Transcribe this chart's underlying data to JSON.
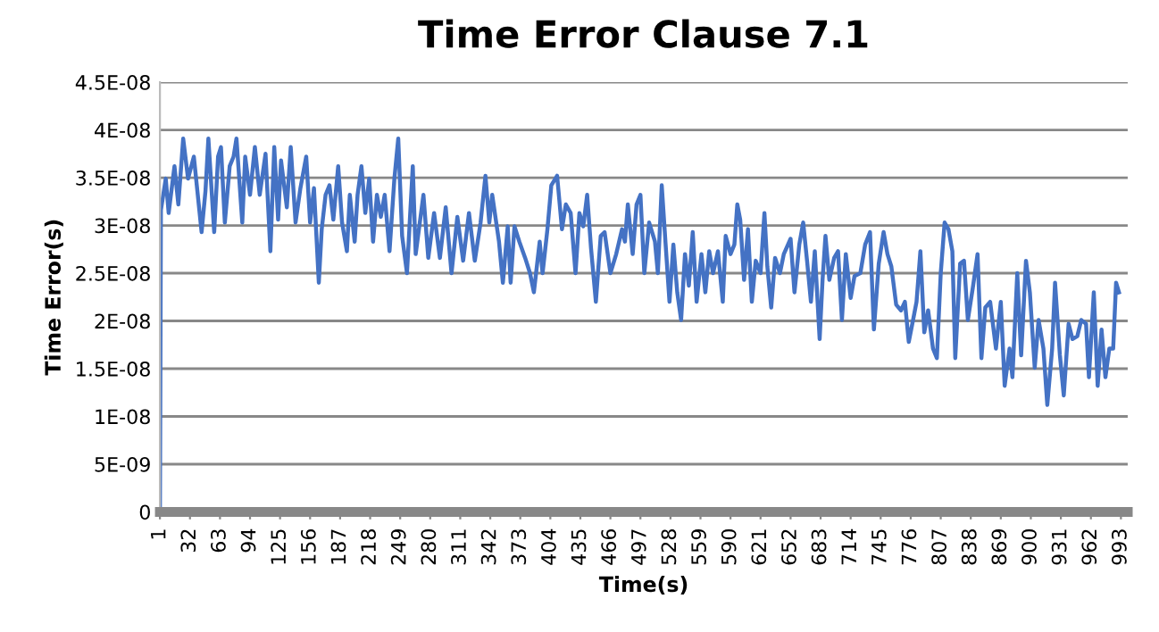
{
  "chart_data": {
    "type": "line",
    "title": "Time Error Clause 7.1",
    "xlabel": "Time(s)",
    "ylabel": "Time Error(s)",
    "xlim": [
      1,
      1000
    ],
    "xticks": [
      1,
      32,
      63,
      94,
      125,
      156,
      187,
      218,
      249,
      280,
      311,
      342,
      373,
      404,
      435,
      466,
      497,
      528,
      559,
      590,
      621,
      652,
      683,
      714,
      745,
      776,
      807,
      838,
      869,
      900,
      931,
      962,
      993
    ],
    "ylim": [
      0,
      4.5e-08
    ],
    "yticks": [
      {
        "value": 0,
        "label": "0"
      },
      {
        "value": 5e-09,
        "label": "5E-09"
      },
      {
        "value": 1e-08,
        "label": "1E-08"
      },
      {
        "value": 1.5e-08,
        "label": "1.5E-08"
      },
      {
        "value": 2e-08,
        "label": "2E-08"
      },
      {
        "value": 2.5e-08,
        "label": "2.5E-08"
      },
      {
        "value": 3e-08,
        "label": "3E-08"
      },
      {
        "value": 3.5e-08,
        "label": "3.5E-08"
      },
      {
        "value": 4e-08,
        "label": "4E-08"
      },
      {
        "value": 4.5e-08,
        "label": "4.5E-08"
      }
    ],
    "grid": "y",
    "legend": false,
    "marker": "none",
    "line_style": "solid",
    "series": [
      {
        "color": "#4472c4",
        "x": [
          1,
          2,
          7,
          10,
          16,
          20,
          25,
          30,
          36,
          44,
          48,
          51,
          57,
          61,
          64,
          68,
          73,
          77,
          80,
          86,
          89,
          94,
          99,
          104,
          110,
          115,
          119,
          123,
          126,
          132,
          136,
          141,
          146,
          152,
          156,
          160,
          165,
          168,
          172,
          176,
          180,
          185,
          189,
          194,
          197,
          202,
          205,
          209,
          213,
          217,
          221,
          225,
          229,
          233,
          238,
          243,
          247,
          251,
          256,
          262,
          265,
          273,
          278,
          284,
          290,
          296,
          302,
          308,
          314,
          320,
          326,
          332,
          337,
          341,
          344,
          351,
          355,
          360,
          363,
          367,
          372,
          378,
          383,
          387,
          393,
          396,
          401,
          405,
          411,
          416,
          420,
          425,
          430,
          434,
          438,
          442,
          446,
          451,
          456,
          460,
          466,
          472,
          478,
          481,
          484,
          489,
          493,
          497,
          501,
          506,
          512,
          515,
          519,
          523,
          527,
          531,
          535,
          539,
          543,
          547,
          551,
          555,
          560,
          564,
          568,
          572,
          577,
          582,
          585,
          590,
          594,
          597,
          600,
          604,
          608,
          612,
          616,
          621,
          625,
          628,
          632,
          636,
          641,
          645,
          652,
          656,
          661,
          665,
          669,
          673,
          677,
          682,
          685,
          688,
          692,
          697,
          701,
          705,
          709,
          714,
          718,
          724,
          729,
          734,
          738,
          743,
          748,
          752,
          756,
          761,
          766,
          770,
          774,
          779,
          782,
          786,
          790,
          794,
          799,
          803,
          807,
          811,
          815,
          819,
          822,
          827,
          831,
          835,
          840,
          845,
          849,
          853,
          858,
          864,
          869,
          873,
          878,
          881,
          886,
          890,
          895,
          899,
          904,
          908,
          913,
          917,
          922,
          925,
          930,
          934,
          939,
          943,
          948,
          952,
          957,
          960,
          965,
          969,
          973,
          977,
          981,
          985,
          988,
          991
        ],
        "values": [
          0,
          3.16e-08,
          3.49e-08,
          3.13e-08,
          3.62e-08,
          3.22e-08,
          3.91e-08,
          3.49e-08,
          3.72e-08,
          2.93e-08,
          3.36e-08,
          3.91e-08,
          2.93e-08,
          3.72e-08,
          3.82e-08,
          3.03e-08,
          3.62e-08,
          3.72e-08,
          3.91e-08,
          3.03e-08,
          3.72e-08,
          3.32e-08,
          3.82e-08,
          3.32e-08,
          3.75e-08,
          2.73e-08,
          3.82e-08,
          3.06e-08,
          3.68e-08,
          3.19e-08,
          3.82e-08,
          3.03e-08,
          3.39e-08,
          3.72e-08,
          3.03e-08,
          3.39e-08,
          2.4e-08,
          2.96e-08,
          3.32e-08,
          3.42e-08,
          3.06e-08,
          3.62e-08,
          3.03e-08,
          2.73e-08,
          3.32e-08,
          2.83e-08,
          3.32e-08,
          3.62e-08,
          3.13e-08,
          3.49e-08,
          2.83e-08,
          3.32e-08,
          3.09e-08,
          3.32e-08,
          2.73e-08,
          3.49e-08,
          3.91e-08,
          2.89e-08,
          2.5e-08,
          3.62e-08,
          2.7e-08,
          3.32e-08,
          2.66e-08,
          3.13e-08,
          2.66e-08,
          3.19e-08,
          2.5e-08,
          3.09e-08,
          2.63e-08,
          3.13e-08,
          2.63e-08,
          3.03e-08,
          3.52e-08,
          3.03e-08,
          3.32e-08,
          2.83e-08,
          2.4e-08,
          2.99e-08,
          2.4e-08,
          2.99e-08,
          2.83e-08,
          2.66e-08,
          2.5e-08,
          2.3e-08,
          2.83e-08,
          2.5e-08,
          2.96e-08,
          3.42e-08,
          3.52e-08,
          2.96e-08,
          3.22e-08,
          3.13e-08,
          2.5e-08,
          3.13e-08,
          2.99e-08,
          3.32e-08,
          2.76e-08,
          2.2e-08,
          2.89e-08,
          2.93e-08,
          2.5e-08,
          2.7e-08,
          2.96e-08,
          2.83e-08,
          3.22e-08,
          2.7e-08,
          3.22e-08,
          3.32e-08,
          2.5e-08,
          3.03e-08,
          2.83e-08,
          2.5e-08,
          3.42e-08,
          2.8e-08,
          2.2e-08,
          2.8e-08,
          2.3e-08,
          2.01e-08,
          2.7e-08,
          2.37e-08,
          2.93e-08,
          2.2e-08,
          2.7e-08,
          2.3e-08,
          2.73e-08,
          2.5e-08,
          2.73e-08,
          2.2e-08,
          2.89e-08,
          2.7e-08,
          2.8e-08,
          3.22e-08,
          3.06e-08,
          2.43e-08,
          2.96e-08,
          2.2e-08,
          2.63e-08,
          2.5e-08,
          3.13e-08,
          2.57e-08,
          2.14e-08,
          2.66e-08,
          2.5e-08,
          2.7e-08,
          2.86e-08,
          2.3e-08,
          2.8e-08,
          3.03e-08,
          2.63e-08,
          2.2e-08,
          2.73e-08,
          1.81e-08,
          2.43e-08,
          2.89e-08,
          2.43e-08,
          2.66e-08,
          2.73e-08,
          2.01e-08,
          2.7e-08,
          2.24e-08,
          2.47e-08,
          2.5e-08,
          2.8e-08,
          2.93e-08,
          1.91e-08,
          2.6e-08,
          2.93e-08,
          2.7e-08,
          2.57e-08,
          2.17e-08,
          2.11e-08,
          2.2e-08,
          1.78e-08,
          2.04e-08,
          2.2e-08,
          2.73e-08,
          1.88e-08,
          2.11e-08,
          1.71e-08,
          1.61e-08,
          2.5e-08,
          3.03e-08,
          2.96e-08,
          2.73e-08,
          1.61e-08,
          2.6e-08,
          2.63e-08,
          2.01e-08,
          2.34e-08,
          2.7e-08,
          1.61e-08,
          2.14e-08,
          2.2e-08,
          1.71e-08,
          2.2e-08,
          1.32e-08,
          1.71e-08,
          1.41e-08,
          2.5e-08,
          1.64e-08,
          2.63e-08,
          2.3e-08,
          1.51e-08,
          2.01e-08,
          1.71e-08,
          1.12e-08,
          1.71e-08,
          2.4e-08,
          1.64e-08,
          1.22e-08,
          1.97e-08,
          1.81e-08,
          1.84e-08,
          2.01e-08,
          1.97e-08,
          1.41e-08,
          2.3e-08,
          1.32e-08,
          1.91e-08,
          1.41e-08,
          1.71e-08,
          1.71e-08,
          2.4e-08,
          2.3e-08
        ]
      }
    ]
  }
}
